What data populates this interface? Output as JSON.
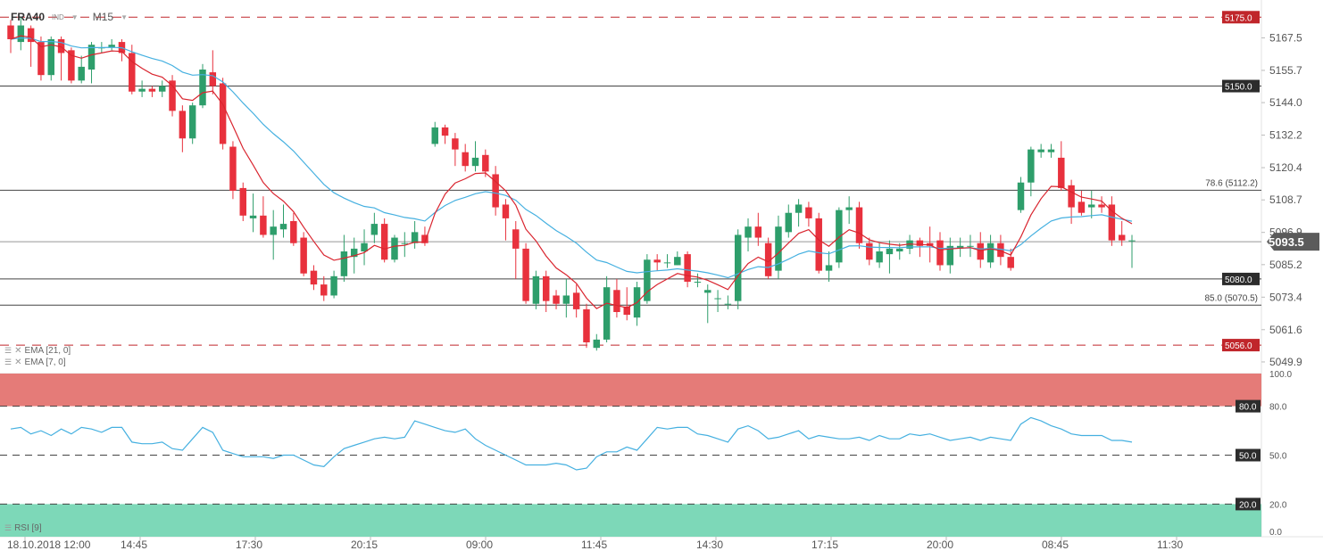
{
  "header": {
    "symbol": "FRA40",
    "type": "IND",
    "timeframe": "M15"
  },
  "colors": {
    "up": "#2e9e6b",
    "down": "#e8313d",
    "ema7": "#d9252f",
    "ema21": "#45b0e0",
    "sellZone": "#e57b78",
    "buyZone": "#7dd8b8",
    "rsiLine": "#45b0e0",
    "priceTag": "#5b5b5b",
    "srTag": "#2c2c2c",
    "dashTag": "#c0262b"
  },
  "indicators": {
    "ema21": "EMA [21, 0]",
    "ema7": "EMA [7, 0]",
    "rsi": "RSI [9]"
  },
  "price_axis": [
    "5167.5",
    "5155.7",
    "5144.0",
    "5132.2",
    "5120.4",
    "5108.7",
    "5096.9",
    "5085.2",
    "5073.4",
    "5061.6",
    "5049.9"
  ],
  "levels": {
    "top_dashed": "5175.0",
    "resist": "5150.0",
    "fib786": "78.6 (5112.2)",
    "current": "5093.5",
    "support": "5080.0",
    "fib85": "85.0 (5070.5)",
    "bottom_dashed": "5056.0"
  },
  "rsi_axis": [
    "100.0",
    "80.0",
    "50.0",
    "20.0",
    "0.0"
  ],
  "rsi_tags": [
    "80.0",
    "50.0",
    "20.0"
  ],
  "time_axis": [
    "18.10.2018  12:00",
    "14:45",
    "17:30",
    "20:15",
    "09:00",
    "11:45",
    "14:30",
    "17:15",
    "20:00",
    "08:45",
    "11:30"
  ],
  "chart_data": {
    "type": "candlestick",
    "ylim": [
      5046,
      5178
    ],
    "candles": [
      [
        5172,
        5167,
        5174,
        5162
      ],
      [
        5166,
        5172,
        5175,
        5163
      ],
      [
        5171,
        5166,
        5172,
        5157
      ],
      [
        5166,
        5154,
        5168,
        5152
      ],
      [
        5154,
        5167,
        5168,
        5152
      ],
      [
        5167,
        5162,
        5168,
        5152
      ],
      [
        5163,
        5152,
        5164,
        5151
      ],
      [
        5152,
        5157,
        5161,
        5151
      ],
      [
        5156,
        5165,
        5166,
        5151
      ],
      [
        5164,
        5164,
        5166,
        5162
      ],
      [
        5164,
        5165,
        5167,
        5163
      ],
      [
        5166,
        5162,
        5167,
        5159
      ],
      [
        5162,
        5148,
        5165,
        5147
      ],
      [
        5148,
        5149,
        5152,
        5146
      ],
      [
        5149,
        5148,
        5150,
        5146
      ],
      [
        5148,
        5150,
        5152,
        5146
      ],
      [
        5152,
        5141,
        5154,
        5139
      ],
      [
        5141,
        5131,
        5143,
        5126
      ],
      [
        5131,
        5143,
        5144,
        5129
      ],
      [
        5143,
        5156,
        5158,
        5142
      ],
      [
        5155,
        5150,
        5163,
        5147
      ],
      [
        5151,
        5129,
        5153,
        5127
      ],
      [
        5128,
        5112,
        5130,
        5109
      ],
      [
        5113,
        5103,
        5115,
        5101
      ],
      [
        5102,
        5103,
        5111,
        5097
      ],
      [
        5103,
        5096,
        5110,
        5095
      ],
      [
        5096,
        5099,
        5105,
        5087
      ],
      [
        5098,
        5100,
        5107,
        5095
      ],
      [
        5101,
        5093,
        5104,
        5092
      ],
      [
        5095,
        5082,
        5097,
        5081
      ],
      [
        5083,
        5078,
        5085,
        5076
      ],
      [
        5078,
        5074,
        5081,
        5072
      ],
      [
        5074,
        5081,
        5083,
        5073
      ],
      [
        5081,
        5090,
        5096,
        5079
      ],
      [
        5088,
        5091,
        5095,
        5082
      ],
      [
        5090,
        5093,
        5098,
        5085
      ],
      [
        5096,
        5100,
        5104,
        5093
      ],
      [
        5100,
        5087,
        5102,
        5086
      ],
      [
        5087,
        5095,
        5096,
        5086
      ],
      [
        5093,
        5093,
        5097,
        5088
      ],
      [
        5093,
        5097,
        5101,
        5091
      ],
      [
        5096,
        5093,
        5099,
        5092
      ],
      [
        5129,
        5135,
        5137,
        5128
      ],
      [
        5135,
        5132,
        5136,
        5129
      ],
      [
        5131,
        5127,
        5133,
        5121
      ],
      [
        5126,
        5121,
        5129,
        5119
      ],
      [
        5121,
        5124,
        5130,
        5119
      ],
      [
        5125,
        5119,
        5127,
        5117
      ],
      [
        5118,
        5106,
        5121,
        5103
      ],
      [
        5107,
        5102,
        5109,
        5094
      ],
      [
        5098,
        5091,
        5101,
        5080
      ],
      [
        5091,
        5072,
        5093,
        5071
      ],
      [
        5071,
        5081,
        5083,
        5069
      ],
      [
        5081,
        5072,
        5083,
        5068
      ],
      [
        5074,
        5071,
        5076,
        5069
      ],
      [
        5071,
        5074,
        5080,
        5066
      ],
      [
        5075,
        5069,
        5078,
        5066
      ],
      [
        5069,
        5057,
        5071,
        5055
      ],
      [
        5055,
        5058,
        5060,
        5054
      ],
      [
        5058,
        5077,
        5081,
        5057
      ],
      [
        5076,
        5068,
        5080,
        5066
      ],
      [
        5070,
        5067,
        5077,
        5065
      ],
      [
        5066,
        5077,
        5079,
        5063
      ],
      [
        5072,
        5087,
        5089,
        5071
      ],
      [
        5087,
        5086,
        5089,
        5083
      ],
      [
        5086,
        5086,
        5089,
        5084
      ],
      [
        5085,
        5088,
        5090,
        5085
      ],
      [
        5089,
        5079,
        5090,
        5077
      ],
      [
        5079,
        5079,
        5082,
        5077
      ],
      [
        5075,
        5076,
        5078,
        5064
      ],
      [
        5073,
        5073,
        5076,
        5068
      ],
      [
        5071,
        5071,
        5074,
        5069
      ],
      [
        5072,
        5096,
        5098,
        5069
      ],
      [
        5095,
        5099,
        5102,
        5090
      ],
      [
        5099,
        5095,
        5104,
        5092
      ],
      [
        5093,
        5081,
        5095,
        5080
      ],
      [
        5083,
        5099,
        5103,
        5080
      ],
      [
        5097,
        5104,
        5107,
        5095
      ],
      [
        5104,
        5107,
        5109,
        5099
      ],
      [
        5106,
        5102,
        5108,
        5099
      ],
      [
        5102,
        5083,
        5104,
        5082
      ],
      [
        5083,
        5085,
        5090,
        5079
      ],
      [
        5086,
        5105,
        5106,
        5084
      ],
      [
        5105,
        5106,
        5110,
        5100
      ],
      [
        5106,
        5093,
        5108,
        5091
      ],
      [
        5093,
        5087,
        5095,
        5085
      ],
      [
        5086,
        5090,
        5093,
        5084
      ],
      [
        5089,
        5091,
        5094,
        5082
      ],
      [
        5090,
        5091,
        5093,
        5087
      ],
      [
        5091,
        5094,
        5096,
        5089
      ],
      [
        5094,
        5092,
        5095,
        5088
      ],
      [
        5093,
        5092,
        5099,
        5086
      ],
      [
        5094,
        5085,
        5097,
        5083
      ],
      [
        5085,
        5092,
        5095,
        5082
      ],
      [
        5091,
        5092,
        5095,
        5088
      ],
      [
        5092,
        5092,
        5096,
        5088
      ],
      [
        5093,
        5087,
        5097,
        5084
      ],
      [
        5086,
        5093,
        5096,
        5084
      ],
      [
        5093,
        5088,
        5096,
        5085
      ],
      [
        5088,
        5084,
        5091,
        5083
      ],
      [
        5105,
        5115,
        5117,
        5104
      ],
      [
        5115,
        5127,
        5128,
        5110
      ],
      [
        5126,
        5127,
        5129,
        5124
      ],
      [
        5126,
        5127,
        5129,
        5124
      ],
      [
        5124,
        5113,
        5130,
        5112
      ],
      [
        5114,
        5106,
        5116,
        5100
      ],
      [
        5108,
        5104,
        5112,
        5103
      ],
      [
        5106,
        5107,
        5112,
        5102
      ],
      [
        5107,
        5106,
        5110,
        5104
      ],
      [
        5107,
        5094,
        5110,
        5092
      ],
      [
        5096,
        5094,
        5101,
        5092
      ],
      [
        5094,
        5094,
        5096,
        5084
      ]
    ],
    "rsi": [
      66,
      67,
      63,
      65,
      62,
      66,
      63,
      67,
      66,
      64,
      67,
      67,
      58,
      57,
      57,
      58,
      54,
      53,
      60,
      67,
      64,
      53,
      51,
      49,
      49,
      49,
      48,
      50,
      50,
      47,
      44,
      43,
      49,
      54,
      56,
      58,
      60,
      61,
      60,
      61,
      71,
      69,
      67,
      65,
      64,
      66,
      60,
      56,
      53,
      50,
      47,
      44,
      44,
      44,
      45,
      44,
      41,
      42,
      49,
      52,
      52,
      55,
      53,
      60,
      67,
      66,
      67,
      67,
      63,
      62,
      60,
      58,
      66,
      68,
      65,
      60,
      61,
      63,
      65,
      60,
      62,
      61,
      60,
      60,
      61,
      59,
      62,
      60,
      60,
      63,
      62,
      63,
      61,
      59,
      60,
      61,
      59,
      61,
      60,
      59,
      69,
      73,
      71,
      68,
      66,
      63,
      62,
      62,
      62,
      59,
      59,
      58
    ],
    "overbought": 80,
    "oversold": 20,
    "middle": 50
  }
}
